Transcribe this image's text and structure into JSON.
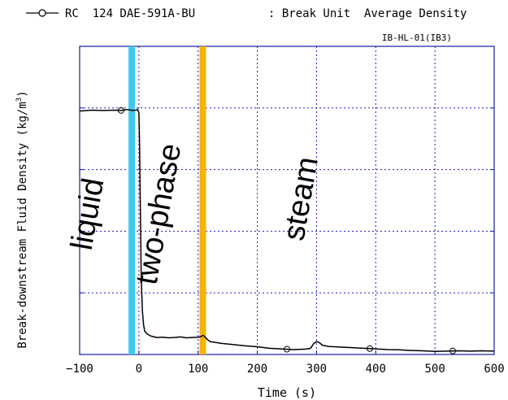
{
  "chart_data": {
    "type": "line",
    "legend": {
      "series_id": "RC  124 DAE-591A-BU",
      "description": ": Break Unit  Average Density"
    },
    "subtitle": "IB-HL-01(IB3)",
    "xlabel": "Time (s)",
    "ylabel": "Break-downstream Fluid Density (kg/m³)",
    "ylabel_prefix": "Break-downstream Fluid Density (kg/m",
    "ylabel_sup": "3",
    "ylabel_suffix": ")",
    "xlim": [
      -100,
      600
    ],
    "xticks": [
      -100,
      0,
      100,
      200,
      300,
      400,
      500,
      600
    ],
    "ylim": [
      0,
      1
    ],
    "y_gridlines": [
      0.2,
      0.4,
      0.6,
      0.8
    ],
    "grid": true,
    "y_tick_labels_visible": false,
    "series": [
      {
        "marker": "circle",
        "color": "#000000",
        "x": [
          -100,
          -80,
          -60,
          -40,
          -30,
          -20,
          -10,
          -5,
          -2,
          0,
          1,
          2,
          3,
          4,
          6,
          8,
          10,
          15,
          20,
          30,
          40,
          50,
          60,
          70,
          80,
          90,
          100,
          105,
          108,
          110,
          115,
          120,
          140,
          160,
          180,
          200,
          220,
          240,
          260,
          280,
          290,
          295,
          300,
          305,
          310,
          320,
          340,
          360,
          380,
          400,
          420,
          440,
          460,
          480,
          500,
          520,
          540,
          560,
          580,
          600
        ],
        "y": [
          0.79,
          0.793,
          0.792,
          0.793,
          0.792,
          0.795,
          0.792,
          0.793,
          0.795,
          0.785,
          0.7,
          0.55,
          0.4,
          0.25,
          0.14,
          0.095,
          0.075,
          0.065,
          0.06,
          0.055,
          0.056,
          0.054,
          0.055,
          0.057,
          0.054,
          0.055,
          0.056,
          0.058,
          0.062,
          0.06,
          0.05,
          0.042,
          0.036,
          0.032,
          0.028,
          0.025,
          0.02,
          0.018,
          0.016,
          0.017,
          0.02,
          0.035,
          0.042,
          0.038,
          0.03,
          0.026,
          0.024,
          0.022,
          0.02,
          0.018,
          0.016,
          0.015,
          0.013,
          0.012,
          0.01,
          0.011,
          0.012,
          0.011,
          0.012,
          0.011
        ],
        "marker_x": [
          -30,
          250,
          390,
          530
        ]
      }
    ],
    "phase_markers": [
      {
        "x": -12,
        "color": "#3ec8f0"
      },
      {
        "x": 108,
        "color": "#f5b400"
      }
    ],
    "annotations": [
      {
        "text": "liquid",
        "x": -70,
        "y": 0.45
      },
      {
        "text": "two-phase",
        "x": 50,
        "y": 0.45
      },
      {
        "text": "steam",
        "x": 290,
        "y": 0.5
      }
    ]
  }
}
